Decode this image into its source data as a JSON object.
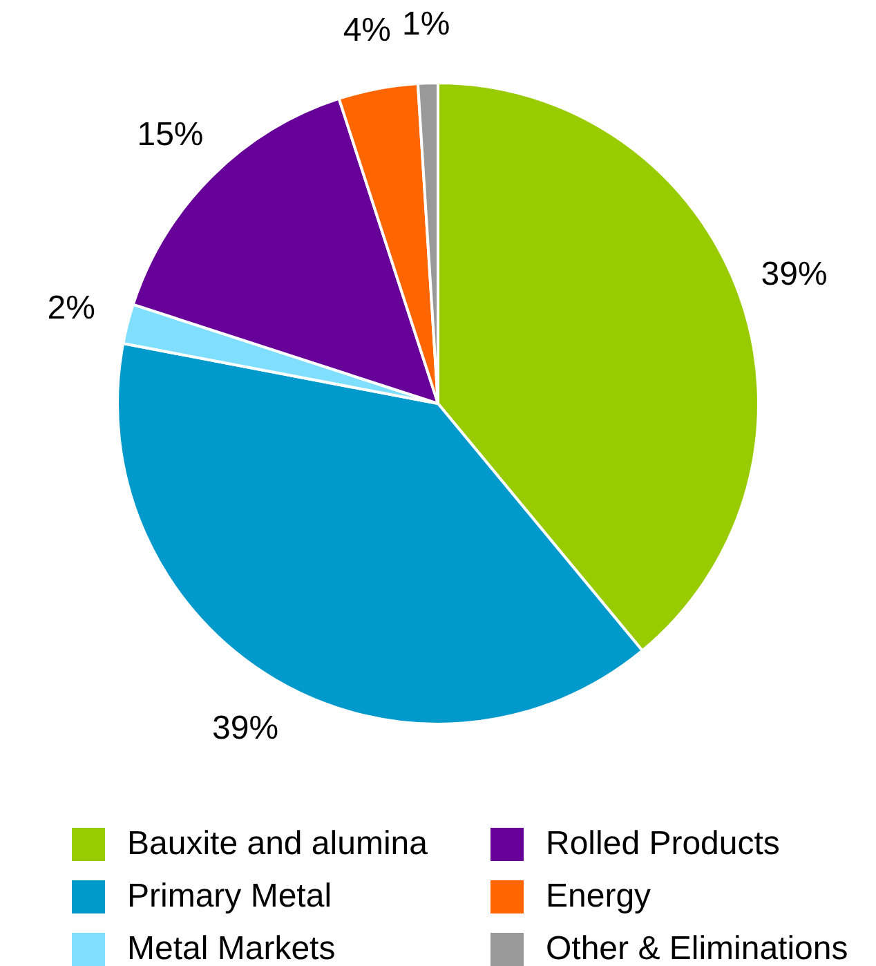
{
  "chart_data": {
    "type": "pie",
    "categories": [
      "Bauxite and alumina",
      "Primary Metal",
      "Metal Markets",
      "Rolled Products",
      "Energy",
      "Other & Eliminations"
    ],
    "values": [
      39,
      39,
      2,
      15,
      4,
      1
    ],
    "colors": [
      "#99cc00",
      "#0099cc",
      "#80dfff",
      "#660099",
      "#ff6600",
      "#999999"
    ],
    "value_labels": [
      "39%",
      "39%",
      "2%",
      "15%",
      "4%",
      "1%"
    ],
    "legend": "bottom"
  }
}
